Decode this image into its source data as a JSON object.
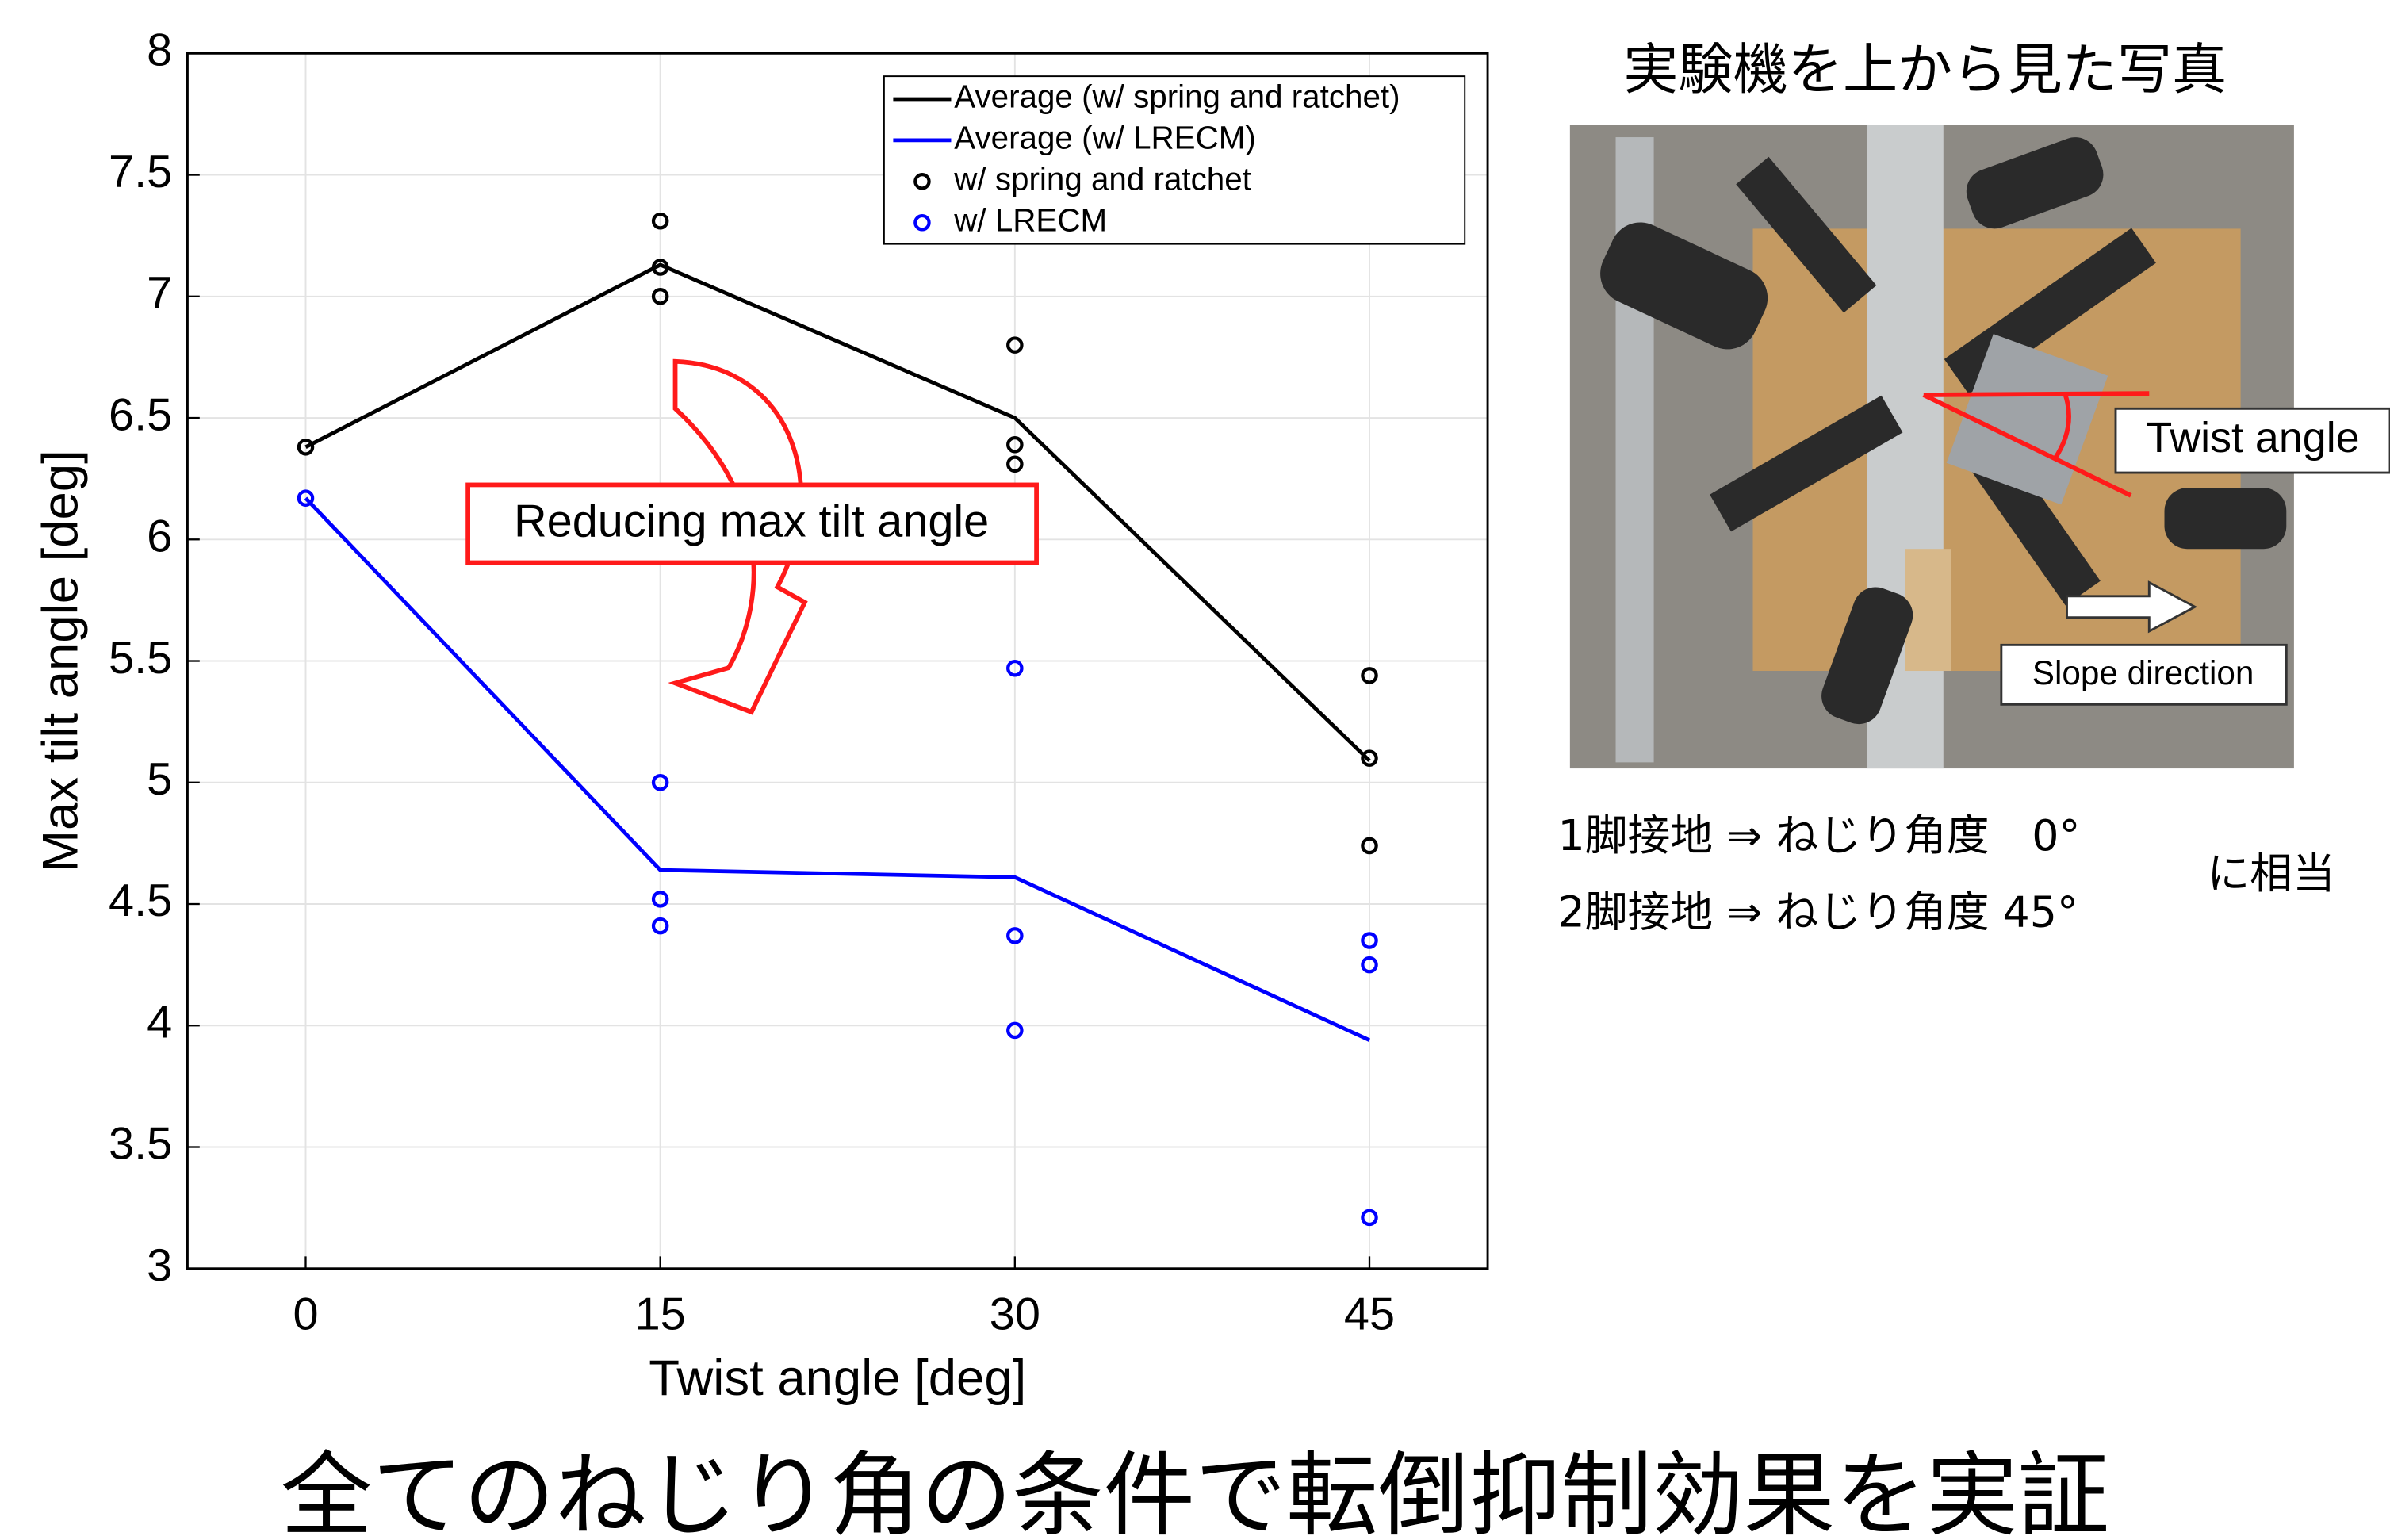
{
  "chart_data": {
    "type": "line",
    "xlabel": "Twist angle [deg]",
    "ylabel": "Max tilt angle [deg]",
    "xlim": [
      -5,
      50
    ],
    "ylim": [
      3,
      8
    ],
    "xticks": [
      0,
      15,
      30,
      45
    ],
    "yticks": [
      3,
      3.5,
      4,
      4.5,
      5,
      5.5,
      6,
      6.5,
      7,
      7.5,
      8
    ],
    "grid": true,
    "legend": "upper right",
    "annotation": "Reducing max tilt angle",
    "series": [
      {
        "name": "Average (w/ spring and ratchet)",
        "color": "#000000",
        "style": "line",
        "x": [
          0,
          15,
          30,
          45
        ],
        "values": [
          6.38,
          7.13,
          6.5,
          5.09
        ]
      },
      {
        "name": "Average (w/ LRECM)",
        "color": "#0000ff",
        "style": "line",
        "x": [
          0,
          15,
          30,
          45
        ],
        "values": [
          6.17,
          4.64,
          4.61,
          3.94
        ]
      },
      {
        "name": "w/ spring and ratchet",
        "color": "#000000",
        "style": "marker",
        "x": [
          0,
          15,
          15,
          15,
          30,
          30,
          30,
          45,
          45,
          45
        ],
        "values": [
          6.38,
          7.31,
          7.12,
          7.0,
          6.8,
          6.39,
          6.31,
          5.44,
          5.1,
          4.74
        ]
      },
      {
        "name": "w/ LRECM",
        "color": "#0000ff",
        "style": "marker",
        "x": [
          0,
          15,
          15,
          15,
          30,
          30,
          30,
          45,
          45,
          45
        ],
        "values": [
          6.17,
          5.0,
          4.52,
          4.41,
          5.47,
          4.37,
          3.98,
          4.35,
          4.25,
          3.21
        ]
      }
    ]
  },
  "photo": {
    "title": "実験機を上から見た写真",
    "twist_label": "Twist angle",
    "slope_label": "Slope direction"
  },
  "notes": {
    "line1": "1脚接地 ⇒ ねじり角度　0°",
    "line2": "2脚接地 ⇒ ねじり角度 45°",
    "suffix": "に相当"
  },
  "caption": "全てのねじり角の条件で転倒抑制効果を実証"
}
